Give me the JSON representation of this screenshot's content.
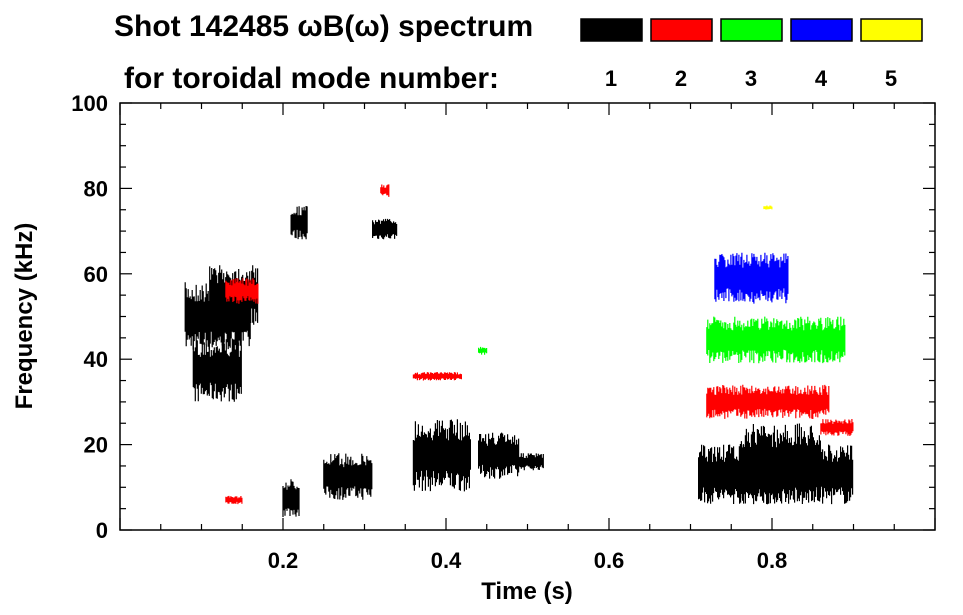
{
  "chart_data": {
    "type": "heatmap",
    "title": "Shot 142485 ωB(ω) spectrum",
    "subtitle": "for toroidal mode number:",
    "xlabel": "Time (s)",
    "ylabel": "Frequency (kHz)",
    "xlim": [
      0.0,
      1.0
    ],
    "ylim": [
      0,
      100
    ],
    "x_ticks": [
      0.2,
      0.4,
      0.6,
      0.8
    ],
    "x_tick_labels": [
      "0.2",
      "0.4",
      "0.6",
      "0.8"
    ],
    "y_ticks": [
      0,
      20,
      40,
      60,
      80,
      100
    ],
    "y_tick_labels": [
      "0",
      "20",
      "40",
      "60",
      "80",
      "100"
    ],
    "legend": [
      {
        "n": "1",
        "color": "#000000"
      },
      {
        "n": "2",
        "color": "#ff0000"
      },
      {
        "n": "3",
        "color": "#00ff00"
      },
      {
        "n": "4",
        "color": "#0000ff"
      },
      {
        "n": "5",
        "color": "#ffff00"
      }
    ],
    "series": [
      {
        "name": "n=1",
        "color": "#000000",
        "regions": [
          {
            "t": [
              0.08,
              0.16
            ],
            "f": [
              42,
              58
            ]
          },
          {
            "t": [
              0.09,
              0.15
            ],
            "f": [
              30,
              45
            ]
          },
          {
            "t": [
              0.11,
              0.17
            ],
            "f": [
              48,
              62
            ]
          },
          {
            "t": [
              0.2,
              0.22
            ],
            "f": [
              3,
              12
            ]
          },
          {
            "t": [
              0.21,
              0.23
            ],
            "f": [
              68,
              76
            ]
          },
          {
            "t": [
              0.25,
              0.31
            ],
            "f": [
              7,
              18
            ]
          },
          {
            "t": [
              0.31,
              0.34
            ],
            "f": [
              68,
              73
            ]
          },
          {
            "t": [
              0.36,
              0.43
            ],
            "f": [
              9,
              26
            ]
          },
          {
            "t": [
              0.44,
              0.49
            ],
            "f": [
              12,
              23
            ]
          },
          {
            "t": [
              0.49,
              0.52
            ],
            "f": [
              14,
              18
            ]
          },
          {
            "t": [
              0.71,
              0.9
            ],
            "f": [
              6,
              20
            ]
          },
          {
            "t": [
              0.76,
              0.86
            ],
            "f": [
              6,
              25
            ]
          }
        ]
      },
      {
        "name": "n=2",
        "color": "#ff0000",
        "regions": [
          {
            "t": [
              0.13,
              0.17
            ],
            "f": [
              53,
              59
            ]
          },
          {
            "t": [
              0.13,
              0.15
            ],
            "f": [
              6,
              8
            ]
          },
          {
            "t": [
              0.32,
              0.33
            ],
            "f": [
              78,
              81
            ]
          },
          {
            "t": [
              0.36,
              0.42
            ],
            "f": [
              35,
              37
            ]
          },
          {
            "t": [
              0.72,
              0.87
            ],
            "f": [
              26,
              34
            ]
          },
          {
            "t": [
              0.86,
              0.9
            ],
            "f": [
              22,
              26
            ]
          }
        ]
      },
      {
        "name": "n=3",
        "color": "#00ff00",
        "regions": [
          {
            "t": [
              0.72,
              0.89
            ],
            "f": [
              39,
              50
            ]
          },
          {
            "t": [
              0.44,
              0.45
            ],
            "f": [
              41,
              43
            ]
          }
        ]
      },
      {
        "name": "n=4",
        "color": "#0000ff",
        "regions": [
          {
            "t": [
              0.73,
              0.82
            ],
            "f": [
              53,
              65
            ]
          }
        ]
      },
      {
        "name": "n=5",
        "color": "#ffff00",
        "regions": [
          {
            "t": [
              0.79,
              0.8
            ],
            "f": [
              75,
              76
            ]
          }
        ]
      }
    ]
  }
}
